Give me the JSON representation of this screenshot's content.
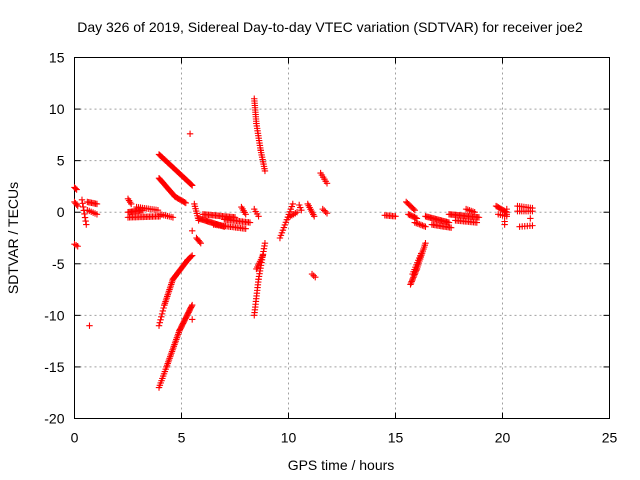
{
  "chart_data": {
    "type": "scatter",
    "title": "Day 326 of 2019, Sidereal Day-to-day VTEC variation (SDTVAR) for receiver joe2",
    "xlabel": "GPS time / hours",
    "ylabel": "SDTVAR / TECUs",
    "xlim": [
      0,
      25
    ],
    "ylim": [
      -20,
      15
    ],
    "xticks": [
      "0",
      "5",
      "10",
      "15",
      "20",
      "25"
    ],
    "yticks": [
      "15",
      "10",
      "5",
      "0",
      "-5",
      "-10",
      "-15",
      "-20"
    ],
    "grid": true,
    "marker": "+",
    "series_color": "#ff0000",
    "segments": [
      {
        "x0": 0.0,
        "y0": 2.4,
        "x1": 0.1,
        "y1": 2.2,
        "n": 3
      },
      {
        "x0": 0.0,
        "y0": 1.0,
        "x1": 0.15,
        "y1": 0.6,
        "n": 4
      },
      {
        "x0": 0.0,
        "y0": -3.1,
        "x1": 0.15,
        "y1": -3.3,
        "n": 3
      },
      {
        "x0": 0.35,
        "y0": 1.2,
        "x1": 0.55,
        "y1": -1.2,
        "n": 8
      },
      {
        "x0": 0.6,
        "y0": 1.0,
        "x1": 1.05,
        "y1": 0.8,
        "n": 8
      },
      {
        "x0": 0.6,
        "y0": 0.2,
        "x1": 1.05,
        "y1": -0.2,
        "n": 6
      },
      {
        "x0": 2.5,
        "y0": 1.3,
        "x1": 2.65,
        "y1": 0.8,
        "n": 4
      },
      {
        "x0": 2.5,
        "y0": 0.0,
        "x1": 3.2,
        "y1": 0.2,
        "n": 14
      },
      {
        "x0": 2.5,
        "y0": -0.5,
        "x1": 4.0,
        "y1": -0.4,
        "n": 22
      },
      {
        "x0": 2.9,
        "y0": 0.5,
        "x1": 3.9,
        "y1": 0.2,
        "n": 12
      },
      {
        "x0": 3.95,
        "y0": 5.6,
        "x1": 5.5,
        "y1": 2.6,
        "n": 40
      },
      {
        "x0": 3.95,
        "y0": 3.3,
        "x1": 4.7,
        "y1": 1.5,
        "n": 22
      },
      {
        "x0": 4.7,
        "y0": 1.5,
        "x1": 5.2,
        "y1": 0.9,
        "n": 10
      },
      {
        "x0": 4.0,
        "y0": -0.2,
        "x1": 4.6,
        "y1": -0.5,
        "n": 8
      },
      {
        "x0": 3.95,
        "y0": -11.0,
        "x1": 4.2,
        "y1": -9.0,
        "n": 8
      },
      {
        "x0": 4.2,
        "y0": -9.0,
        "x1": 4.6,
        "y1": -6.5,
        "n": 16
      },
      {
        "x0": 4.6,
        "y0": -6.5,
        "x1": 5.3,
        "y1": -4.6,
        "n": 22
      },
      {
        "x0": 5.3,
        "y0": -4.6,
        "x1": 5.5,
        "y1": -4.2,
        "n": 5
      },
      {
        "x0": 3.95,
        "y0": -17.0,
        "x1": 4.3,
        "y1": -15.0,
        "n": 10
      },
      {
        "x0": 4.3,
        "y0": -15.0,
        "x1": 4.9,
        "y1": -11.5,
        "n": 22
      },
      {
        "x0": 4.9,
        "y0": -11.5,
        "x1": 5.5,
        "y1": -9.0,
        "n": 22
      },
      {
        "x0": 5.4,
        "y0": 7.6,
        "x1": 5.4,
        "y1": 7.6,
        "n": 1
      },
      {
        "x0": 5.5,
        "y0": -1.8,
        "x1": 5.5,
        "y1": -1.8,
        "n": 1
      },
      {
        "x0": 5.5,
        "y0": -10.4,
        "x1": 5.5,
        "y1": -10.4,
        "n": 1
      },
      {
        "x0": 0.7,
        "y0": -11.0,
        "x1": 0.7,
        "y1": -11.0,
        "n": 1
      },
      {
        "x0": 5.6,
        "y0": 0.8,
        "x1": 5.8,
        "y1": -0.8,
        "n": 8
      },
      {
        "x0": 5.7,
        "y0": -2.5,
        "x1": 5.9,
        "y1": -3.0,
        "n": 5
      },
      {
        "x0": 5.8,
        "y0": -0.6,
        "x1": 7.0,
        "y1": -1.4,
        "n": 24
      },
      {
        "x0": 6.0,
        "y0": -0.2,
        "x1": 7.5,
        "y1": -0.5,
        "n": 24
      },
      {
        "x0": 6.5,
        "y0": -1.2,
        "x1": 8.0,
        "y1": -1.6,
        "n": 20
      },
      {
        "x0": 7.0,
        "y0": -0.7,
        "x1": 8.2,
        "y1": -1.0,
        "n": 18
      },
      {
        "x0": 7.8,
        "y0": 0.5,
        "x1": 8.0,
        "y1": -0.2,
        "n": 5
      },
      {
        "x0": 8.4,
        "y0": 11.0,
        "x1": 8.5,
        "y1": 8.6,
        "n": 12
      },
      {
        "x0": 8.5,
        "y0": 8.6,
        "x1": 8.7,
        "y1": 6.0,
        "n": 12
      },
      {
        "x0": 8.7,
        "y0": 6.0,
        "x1": 8.9,
        "y1": 4.0,
        "n": 10
      },
      {
        "x0": 8.4,
        "y0": -10.0,
        "x1": 8.6,
        "y1": -6.5,
        "n": 14
      },
      {
        "x0": 8.6,
        "y0": -6.5,
        "x1": 8.9,
        "y1": -3.0,
        "n": 14
      },
      {
        "x0": 8.5,
        "y0": -5.5,
        "x1": 8.8,
        "y1": -4.2,
        "n": 8
      },
      {
        "x0": 8.4,
        "y0": 0.3,
        "x1": 8.6,
        "y1": -0.4,
        "n": 4
      },
      {
        "x0": 9.6,
        "y0": -2.5,
        "x1": 10.2,
        "y1": 0.8,
        "n": 14
      },
      {
        "x0": 10.0,
        "y0": -0.5,
        "x1": 10.4,
        "y1": 0.0,
        "n": 6
      },
      {
        "x0": 10.5,
        "y0": 0.7,
        "x1": 10.6,
        "y1": 0.2,
        "n": 3
      },
      {
        "x0": 10.9,
        "y0": 0.8,
        "x1": 11.2,
        "y1": -0.4,
        "n": 8
      },
      {
        "x0": 11.1,
        "y0": -6.0,
        "x1": 11.25,
        "y1": -6.3,
        "n": 3
      },
      {
        "x0": 11.5,
        "y0": 3.8,
        "x1": 11.8,
        "y1": 2.8,
        "n": 6
      },
      {
        "x0": 11.6,
        "y0": 0.3,
        "x1": 11.8,
        "y1": -0.1,
        "n": 4
      },
      {
        "x0": 14.5,
        "y0": -0.3,
        "x1": 15.0,
        "y1": -0.4,
        "n": 8
      },
      {
        "x0": 15.5,
        "y0": 1.0,
        "x1": 15.9,
        "y1": 0.2,
        "n": 8
      },
      {
        "x0": 15.6,
        "y0": -0.2,
        "x1": 16.0,
        "y1": -0.6,
        "n": 8
      },
      {
        "x0": 15.9,
        "y0": -1.0,
        "x1": 16.4,
        "y1": -1.4,
        "n": 8
      },
      {
        "x0": 15.7,
        "y0": -7.0,
        "x1": 16.0,
        "y1": -5.5,
        "n": 12
      },
      {
        "x0": 16.0,
        "y0": -5.5,
        "x1": 16.4,
        "y1": -3.0,
        "n": 14
      },
      {
        "x0": 15.8,
        "y0": -6.0,
        "x1": 16.2,
        "y1": -4.0,
        "n": 10
      },
      {
        "x0": 16.4,
        "y0": -0.4,
        "x1": 17.5,
        "y1": -1.0,
        "n": 20
      },
      {
        "x0": 16.7,
        "y0": -1.2,
        "x1": 17.6,
        "y1": -1.5,
        "n": 14
      },
      {
        "x0": 17.5,
        "y0": -0.2,
        "x1": 18.9,
        "y1": -0.5,
        "n": 24
      },
      {
        "x0": 17.8,
        "y0": -0.8,
        "x1": 18.8,
        "y1": -1.0,
        "n": 14
      },
      {
        "x0": 18.3,
        "y0": 0.3,
        "x1": 18.7,
        "y1": 0.0,
        "n": 6
      },
      {
        "x0": 19.7,
        "y0": 0.6,
        "x1": 20.2,
        "y1": 0.0,
        "n": 10
      },
      {
        "x0": 19.8,
        "y0": -0.2,
        "x1": 20.2,
        "y1": -0.4,
        "n": 5
      },
      {
        "x0": 20.2,
        "y0": 0.3,
        "x1": 20.2,
        "y1": -0.2,
        "n": 2
      },
      {
        "x0": 20.1,
        "y0": -0.9,
        "x1": 20.1,
        "y1": -1.2,
        "n": 2
      },
      {
        "x0": 20.7,
        "y0": 0.1,
        "x1": 21.4,
        "y1": 0.1,
        "n": 8
      },
      {
        "x0": 20.7,
        "y0": 0.6,
        "x1": 21.4,
        "y1": 0.4,
        "n": 8
      },
      {
        "x0": 20.8,
        "y0": -1.4,
        "x1": 21.4,
        "y1": -1.3,
        "n": 6
      },
      {
        "x0": 21.3,
        "y0": -0.6,
        "x1": 21.3,
        "y1": -0.6,
        "n": 1
      }
    ]
  }
}
